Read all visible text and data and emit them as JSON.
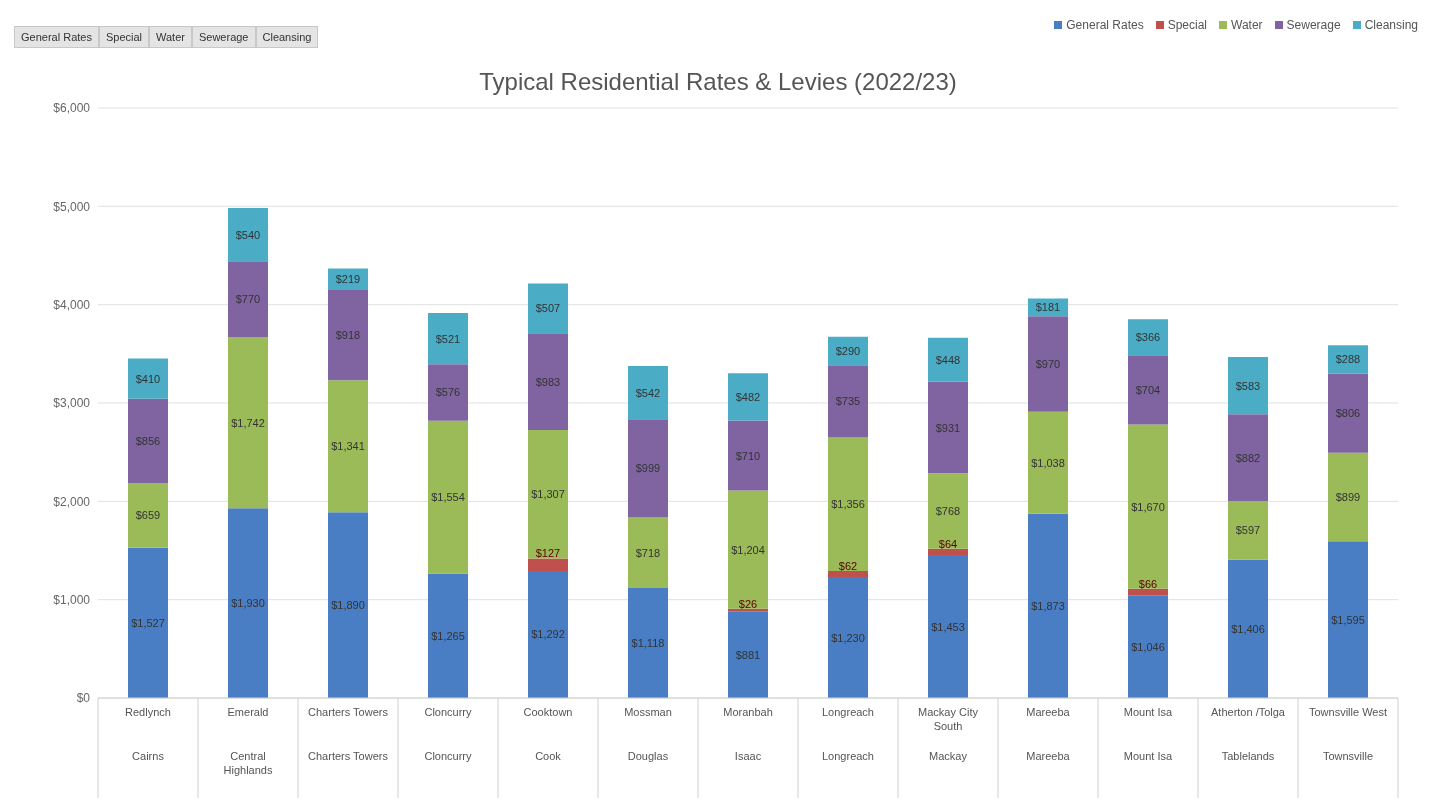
{
  "chart_data": {
    "type": "bar",
    "stacked": true,
    "title": "Typical Residential Rates & Levies (2022/23)",
    "categories": [
      "Redlynch\nCairns",
      "Emerald\nCentral Highlands",
      "Charters Towers\nCharters Towers",
      "Cloncurry\nCloncurry",
      "Cooktown\nCook",
      "Mossman\nDouglas",
      "Moranbah\nIsaac",
      "Longreach\nLongreach",
      "Mackay City South\nMackay",
      "Mareeba\nMareeba",
      "Mount Isa\nMount Isa",
      "Atherton /Tolga\nTablelands",
      "Townsville West\nTownsville"
    ],
    "series": [
      {
        "name": "General Rates",
        "color": "#4a7ec4",
        "values": [
          1527,
          1930,
          1890,
          1265,
          1292,
          1118,
          881,
          1230,
          1453,
          1873,
          1046,
          1406,
          1595
        ],
        "value_labels": [
          "$1,527",
          "$1,930",
          "$1,890",
          "$1,265",
          "$1,292",
          "$1,118",
          "$881",
          "$1,230",
          "$1,453",
          "$1,873",
          "$1,046",
          "$1,406",
          "$1,595"
        ]
      },
      {
        "name": "Special",
        "color": "#c0504d",
        "values": [
          null,
          null,
          null,
          null,
          127,
          null,
          26,
          62,
          64,
          null,
          66,
          null,
          null
        ],
        "value_labels": [
          null,
          null,
          null,
          null,
          "$127",
          null,
          "$26",
          "$62",
          "$64",
          null,
          "$66",
          null,
          null
        ]
      },
      {
        "name": "Water",
        "color": "#9bbb59",
        "values": [
          659,
          1742,
          1341,
          1554,
          1307,
          718,
          1204,
          1356,
          768,
          1038,
          1670,
          597,
          899
        ],
        "value_labels": [
          "$659",
          "$1,742",
          "$1,341",
          "$1,554",
          "$1,307",
          "$718",
          "$1,204",
          "$1,356",
          "$768",
          "$1,038",
          "$1,670",
          "$597",
          "$899"
        ]
      },
      {
        "name": "Sewerage",
        "color": "#8064a2",
        "values": [
          856,
          770,
          918,
          576,
          983,
          999,
          710,
          735,
          931,
          970,
          704,
          882,
          806
        ],
        "value_labels": [
          "$856",
          "$770",
          "$918",
          "$576",
          "$983",
          "$999",
          "$710",
          "$735",
          "$931",
          "$970",
          "$704",
          "$882",
          "$806"
        ]
      },
      {
        "name": "Cleansing",
        "color": "#4bacc6",
        "values": [
          410,
          540,
          219,
          521,
          507,
          542,
          482,
          290,
          448,
          181,
          366,
          583,
          288
        ],
        "value_labels": [
          "$410",
          "$540",
          "$219",
          "$521",
          "$507",
          "$542",
          "$482",
          "$290",
          "$448",
          "$181",
          "$366",
          "$583",
          "$288"
        ]
      }
    ],
    "ylim": [
      0,
      6000
    ],
    "yticks": [
      {
        "value": 0,
        "label": "$0"
      },
      {
        "value": 1000,
        "label": "$1,000"
      },
      {
        "value": 2000,
        "label": "$2,000"
      },
      {
        "value": 3000,
        "label": "$3,000"
      },
      {
        "value": 4000,
        "label": "$4,000"
      },
      {
        "value": 5000,
        "label": "$5,000"
      },
      {
        "value": 6000,
        "label": "$6,000"
      }
    ],
    "grid": "y",
    "legend": "top right",
    "annotations": [
      "General Rates",
      "Special",
      "Water",
      "Sewerage",
      "Cleansing"
    ]
  }
}
